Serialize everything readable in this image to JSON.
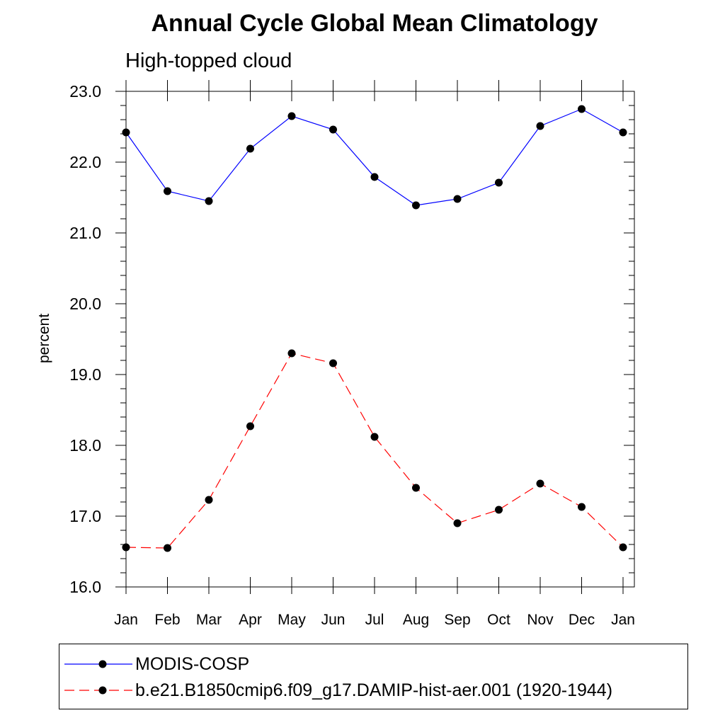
{
  "chart_data": {
    "type": "line",
    "title": "Annual Cycle Global Mean Climatology",
    "subtitle": "High-topped cloud",
    "xlabel": "",
    "ylabel": "percent",
    "categories": [
      "Jan",
      "Feb",
      "Mar",
      "Apr",
      "May",
      "Jun",
      "Jul",
      "Aug",
      "Sep",
      "Oct",
      "Nov",
      "Dec",
      "Jan"
    ],
    "ylim": [
      16.0,
      23.0
    ],
    "yticks": [
      "16.0",
      "17.0",
      "18.0",
      "19.0",
      "20.0",
      "21.0",
      "22.0",
      "23.0"
    ],
    "grid": false,
    "legend_position": "bottom",
    "series": [
      {
        "name": "MODIS-COSP",
        "color": "#0000ff",
        "line_style": "solid",
        "marker": "filled-circle",
        "values": [
          22.42,
          21.59,
          21.45,
          22.19,
          22.65,
          22.46,
          21.79,
          21.39,
          21.48,
          21.71,
          22.51,
          22.75,
          22.42
        ]
      },
      {
        "name": "b.e21.B1850cmip6.f09_g17.DAMIP-hist-aer.001 (1920-1944)",
        "color": "#ff0000",
        "line_style": "dashed",
        "marker": "filled-circle",
        "values": [
          16.56,
          16.55,
          17.23,
          18.27,
          19.3,
          19.16,
          18.12,
          17.4,
          16.9,
          17.09,
          17.46,
          17.13,
          16.56
        ]
      }
    ]
  }
}
